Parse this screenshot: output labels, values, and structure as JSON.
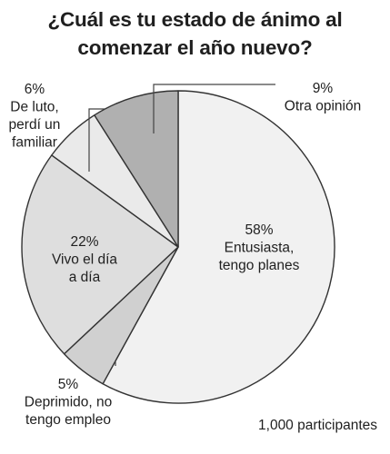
{
  "chart_data": {
    "type": "pie",
    "title": [
      "¿Cuál es tu estado de ánimo al",
      "comenzar el año nuevo?"
    ],
    "slices": [
      {
        "label": "Entusiasta, tengo planes",
        "label_lines": [
          "58%",
          "Entusiasta,",
          "tengo planes"
        ],
        "value": 58,
        "color": "#f1f1f1"
      },
      {
        "label": "Deprimido, no tengo empleo",
        "label_lines": [
          "5%",
          "Deprimido, no",
          "tengo empleo"
        ],
        "value": 5,
        "color": "#d0d0d0"
      },
      {
        "label": "Vivo el día a día",
        "label_lines": [
          "22%",
          "Vivo el día",
          "a día"
        ],
        "value": 22,
        "color": "#dedede"
      },
      {
        "label": "De luto, perdí un familiar",
        "label_lines": [
          "6%",
          "De luto,",
          "perdí un",
          "familiar"
        ],
        "value": 6,
        "color": "#eaeaea"
      },
      {
        "label": "Otra opinión",
        "label_lines": [
          "9%",
          "Otra opinión"
        ],
        "value": 9,
        "color": "#b0b0b0"
      }
    ],
    "start": "12 o'clock",
    "direction": "clockwise",
    "footnote": "1,000 participantes"
  }
}
